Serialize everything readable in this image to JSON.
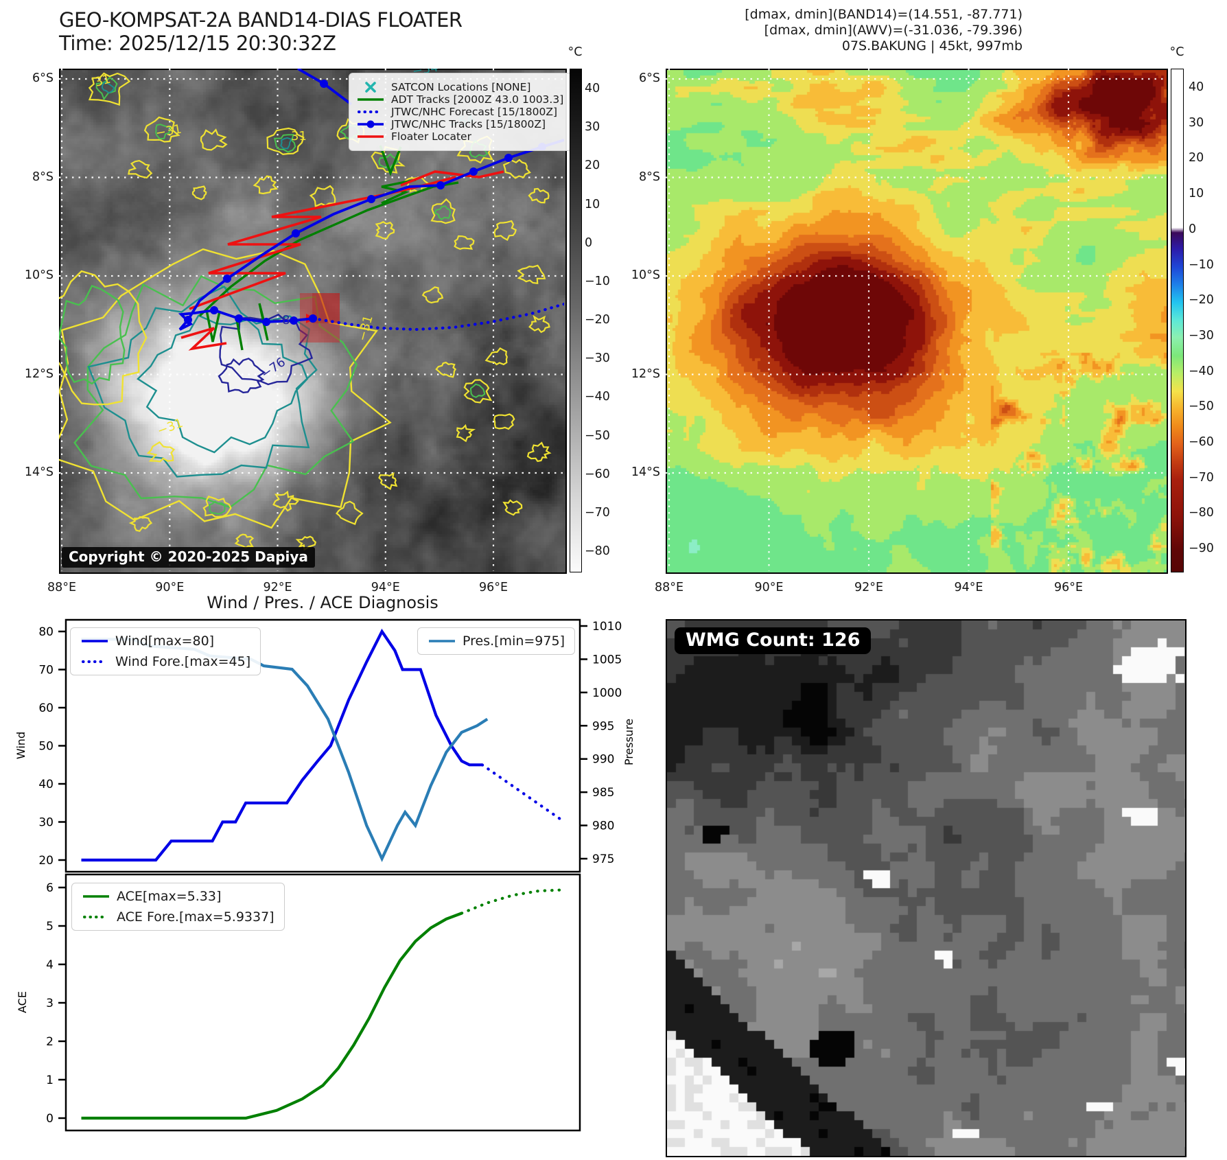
{
  "top_left": {
    "title": "GEO-KOMPSAT-2A BAND14-DIAS FLOATER",
    "time": "Time: 2025/12/15 20:30:32Z",
    "copyright": "Copyright © 2020-2025 Dapiya",
    "legend_items": [
      {
        "label": "SATCON Locations [NONE]",
        "marker": "x",
        "color": "#23b5ae"
      },
      {
        "label": "ADT Tracks [2000Z 43.0 1003.3]",
        "marker": "line",
        "color": "#008000"
      },
      {
        "label": "JTWC/NHC Forecast [15/1800Z]",
        "marker": "dotted",
        "color": "#0000e6"
      },
      {
        "label": "JTWC/NHC Tracks [15/1800Z]",
        "marker": "line-dot",
        "color": "#0000e6"
      },
      {
        "label": "Floater Locater",
        "marker": "line",
        "color": "#ee1111"
      }
    ],
    "lat_ticks": [
      "6°S",
      "8°S",
      "10°S",
      "12°S",
      "14°S"
    ],
    "lon_ticks": [
      "88°E",
      "90°E",
      "92°E",
      "94°E",
      "96°E"
    ],
    "colorbar": {
      "unit": "°C",
      "ticks": [
        "40",
        "30",
        "20",
        "10",
        "0",
        "−10",
        "−20",
        "−30",
        "−40",
        "−50",
        "−60",
        "−70",
        "−80"
      ]
    },
    "contour_labels": [
      {
        "text": "31"
      },
      {
        "text": "−31"
      },
      {
        "text": "31"
      },
      {
        "text": "−31"
      },
      {
        "text": "−31"
      },
      {
        "text": "−54"
      },
      {
        "text": "−54"
      },
      {
        "text": "−76"
      },
      {
        "text": "−8"
      }
    ]
  },
  "top_right": {
    "info_lines": [
      "[dmax, dmin](BAND14)=(14.551, -87.771)",
      "[dmax, dmin](AWV)=(-31.036, -79.396)",
      "07S.BAKUNG | 45kt, 997mb"
    ],
    "lat_ticks": [
      "6°S",
      "8°S",
      "10°S",
      "12°S",
      "14°S"
    ],
    "lon_ticks": [
      "88°E",
      "90°E",
      "92°E",
      "94°E",
      "96°E"
    ],
    "colorbar": {
      "unit": "°C",
      "ticks": [
        "40",
        "30",
        "20",
        "10",
        "0",
        "−10",
        "−20",
        "−30",
        "−40",
        "−50",
        "−60",
        "−70",
        "−80",
        "−90"
      ]
    }
  },
  "bottom_left": {
    "title": "Wind / Pres. / ACE Diagnosis"
  },
  "bottom_right": {
    "wmg_label": "WMG Count: 126"
  },
  "chart_data": [
    {
      "type": "line",
      "title": "Wind / Pres. / ACE Diagnosis",
      "ylabel_left": "Wind",
      "ylabel_right": "Pressure",
      "yticks_left": [
        80,
        70,
        60,
        50,
        40,
        30,
        20
      ],
      "yticks_right": [
        1010,
        1005,
        1000,
        995,
        990,
        985,
        980,
        975
      ],
      "ylim_left": [
        17,
        84
      ],
      "ylim_right": [
        973,
        1011
      ],
      "grid": false,
      "legend_positions": [
        "upper left",
        "upper right"
      ],
      "series": [
        {
          "name": "Wind[max=80]",
          "axis": "left",
          "style": "solid",
          "color": "#0000e6",
          "points": [
            [
              0.03,
              20
            ],
            [
              0.175,
              20
            ],
            [
              0.205,
              25
            ],
            [
              0.285,
              25
            ],
            [
              0.305,
              30
            ],
            [
              0.33,
              30
            ],
            [
              0.35,
              35
            ],
            [
              0.43,
              35
            ],
            [
              0.46,
              41
            ],
            [
              0.49,
              46
            ],
            [
              0.515,
              50
            ],
            [
              0.55,
              62
            ],
            [
              0.585,
              72
            ],
            [
              0.615,
              80
            ],
            [
              0.64,
              75
            ],
            [
              0.655,
              70
            ],
            [
              0.69,
              70
            ],
            [
              0.72,
              58
            ],
            [
              0.75,
              50
            ],
            [
              0.77,
              46
            ],
            [
              0.785,
              45
            ],
            [
              0.81,
              45
            ]
          ]
        },
        {
          "name": "Wind Fore.[max=45]",
          "axis": "left",
          "style": "dotted",
          "color": "#0000e6",
          "points": [
            [
              0.81,
              45
            ],
            [
              0.97,
              30
            ]
          ]
        },
        {
          "name": "Pres.[min=975]",
          "axis": "right",
          "style": "solid",
          "color": "#2a7db5",
          "points": [
            [
              0.03,
              1008
            ],
            [
              0.13,
              1008
            ],
            [
              0.16,
              1007
            ],
            [
              0.25,
              1006.5
            ],
            [
              0.28,
              1005.5
            ],
            [
              0.36,
              1005
            ],
            [
              0.385,
              1004
            ],
            [
              0.44,
              1003.5
            ],
            [
              0.47,
              1001
            ],
            [
              0.51,
              996
            ],
            [
              0.55,
              988
            ],
            [
              0.585,
              980
            ],
            [
              0.615,
              975
            ],
            [
              0.645,
              980
            ],
            [
              0.66,
              982
            ],
            [
              0.68,
              980
            ],
            [
              0.71,
              986
            ],
            [
              0.74,
              991
            ],
            [
              0.77,
              994
            ],
            [
              0.8,
              995
            ],
            [
              0.82,
              996
            ]
          ]
        }
      ]
    },
    {
      "type": "line",
      "ylabel_left": "ACE",
      "yticks_left": [
        6,
        5,
        4,
        3,
        2,
        1,
        0
      ],
      "ylim_left": [
        -0.3,
        6.35
      ],
      "grid": false,
      "series": [
        {
          "name": "ACE[max=5.33]",
          "axis": "left",
          "style": "solid",
          "color": "#008000",
          "points": [
            [
              0.03,
              0
            ],
            [
              0.35,
              0
            ],
            [
              0.41,
              0.2
            ],
            [
              0.46,
              0.5
            ],
            [
              0.5,
              0.85
            ],
            [
              0.53,
              1.3
            ],
            [
              0.56,
              1.9
            ],
            [
              0.59,
              2.6
            ],
            [
              0.62,
              3.4
            ],
            [
              0.65,
              4.1
            ],
            [
              0.68,
              4.6
            ],
            [
              0.71,
              4.95
            ],
            [
              0.74,
              5.18
            ],
            [
              0.77,
              5.33
            ]
          ]
        },
        {
          "name": "ACE Fore.[max=5.9337]",
          "axis": "left",
          "style": "dotted",
          "color": "#008000",
          "points": [
            [
              0.77,
              5.33
            ],
            [
              0.82,
              5.6
            ],
            [
              0.87,
              5.8
            ],
            [
              0.92,
              5.91
            ],
            [
              0.96,
              5.9337
            ]
          ]
        }
      ]
    }
  ]
}
